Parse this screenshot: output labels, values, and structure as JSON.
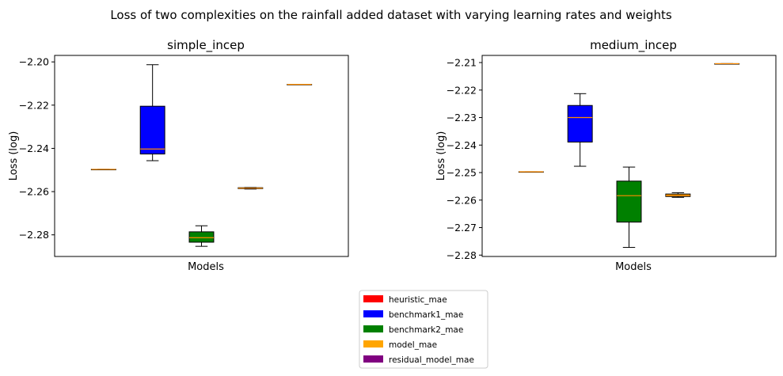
{
  "figure": {
    "suptitle": "Loss of two complexities on the rainfall added dataset with varying learning rates and weights"
  },
  "legend": {
    "placement": "bottom-center",
    "entries": [
      {
        "label": "heuristic_mae",
        "color": "#ff0000"
      },
      {
        "label": "benchmark1_mae",
        "color": "#0000ff"
      },
      {
        "label": "benchmark2_mae",
        "color": "#008000"
      },
      {
        "label": "model_mae",
        "color": "#ffa500"
      },
      {
        "label": "residual_model_mae",
        "color": "#800080"
      }
    ]
  },
  "chart_data": [
    {
      "type": "box",
      "title": "simple_incep",
      "xlabel": "Models",
      "ylabel": "Loss (log)",
      "ylim": [
        -2.29,
        -2.197
      ],
      "yticks": [
        -2.28,
        -2.26,
        -2.24,
        -2.22,
        -2.2
      ],
      "ytick_labels": [
        "−2.28",
        "−2.26",
        "−2.24",
        "−2.22",
        "−2.20"
      ],
      "grid": false,
      "boxes": [
        {
          "pos": 1,
          "min": -2.2497,
          "q1": -2.2497,
          "median": -2.2497,
          "q3": -2.2497,
          "max": -2.2497,
          "color": "#ff0000"
        },
        {
          "pos": 2,
          "min": -2.2457,
          "q1": -2.2426,
          "median": -2.2403,
          "q3": -2.2205,
          "max": -2.2013,
          "color": "#0000ff"
        },
        {
          "pos": 3,
          "min": -2.2853,
          "q1": -2.2834,
          "median": -2.2813,
          "q3": -2.2786,
          "max": -2.2758,
          "color": "#008000"
        },
        {
          "pos": 4,
          "min": -2.2588,
          "q1": -2.2586,
          "median": -2.2584,
          "q3": -2.2582,
          "max": -2.2581,
          "color": "#ffa500"
        },
        {
          "pos": 5,
          "min": -2.2104,
          "q1": -2.2104,
          "median": -2.2104,
          "q3": -2.2104,
          "max": -2.2104,
          "color": "#ffa500"
        }
      ]
    },
    {
      "type": "box",
      "title": "medium_incep",
      "xlabel": "Models",
      "ylabel": "Loss (log)",
      "ylim": [
        -2.2805,
        -2.2074
      ],
      "yticks": [
        -2.28,
        -2.27,
        -2.26,
        -2.25,
        -2.24,
        -2.23,
        -2.22,
        -2.21
      ],
      "ytick_labels": [
        "−2.28",
        "−2.27",
        "−2.26",
        "−2.25",
        "−2.24",
        "−2.23",
        "−2.22",
        "−2.21"
      ],
      "grid": false,
      "boxes": [
        {
          "pos": 1,
          "min": -2.2497,
          "q1": -2.2497,
          "median": -2.2497,
          "q3": -2.2497,
          "max": -2.2497,
          "color": "#ff0000"
        },
        {
          "pos": 2,
          "min": -2.2477,
          "q1": -2.2389,
          "median": -2.23,
          "q3": -2.2256,
          "max": -2.2213,
          "color": "#0000ff"
        },
        {
          "pos": 3,
          "min": -2.2772,
          "q1": -2.268,
          "median": -2.2584,
          "q3": -2.2531,
          "max": -2.248,
          "color": "#008000"
        },
        {
          "pos": 4,
          "min": -2.259,
          "q1": -2.2587,
          "median": -2.2583,
          "q3": -2.2578,
          "max": -2.2573,
          "color": "#ffa500"
        },
        {
          "pos": 5,
          "min": -2.2104,
          "q1": -2.2104,
          "median": -2.2104,
          "q3": -2.2104,
          "max": -2.2104,
          "color": "#ffa500"
        }
      ]
    }
  ]
}
